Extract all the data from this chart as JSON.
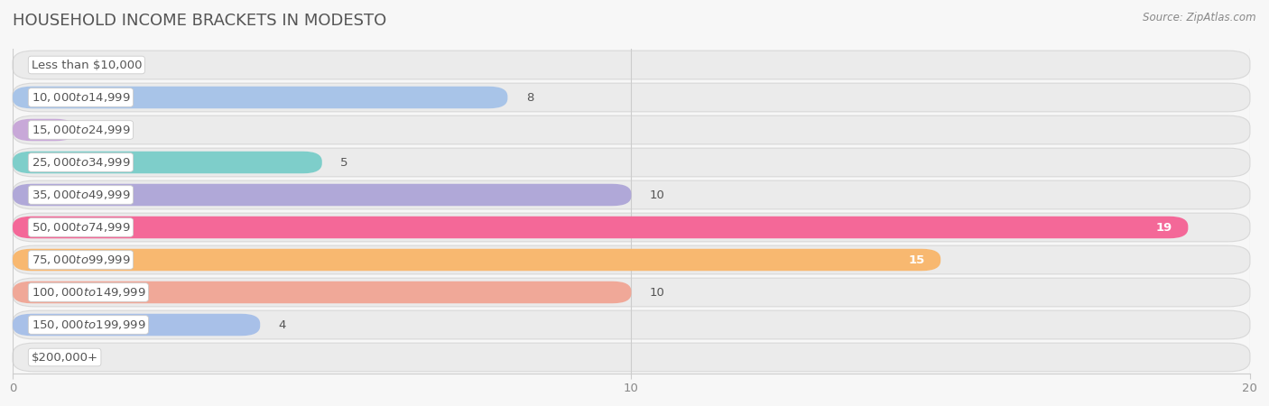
{
  "title": "HOUSEHOLD INCOME BRACKETS IN MODESTO",
  "source": "Source: ZipAtlas.com",
  "categories": [
    "Less than $10,000",
    "$10,000 to $14,999",
    "$15,000 to $24,999",
    "$25,000 to $34,999",
    "$35,000 to $49,999",
    "$50,000 to $74,999",
    "$75,000 to $99,999",
    "$100,000 to $149,999",
    "$150,000 to $199,999",
    "$200,000+"
  ],
  "values": [
    0,
    8,
    1,
    5,
    10,
    19,
    15,
    10,
    4,
    0
  ],
  "bar_colors": [
    "#F4A0A0",
    "#A8C4E8",
    "#C8A8D8",
    "#7ECECA",
    "#B0A8D8",
    "#F46898",
    "#F8B870",
    "#F0A898",
    "#A8C0E8",
    "#C8B8D8"
  ],
  "row_bg_color": "#ebebeb",
  "row_bg_border": "#d8d8d8",
  "background_color": "#f7f7f7",
  "xlim": [
    0,
    20
  ],
  "xticks": [
    0,
    10,
    20
  ],
  "title_fontsize": 13,
  "label_fontsize": 9.5,
  "value_fontsize": 9.5,
  "grid_color": "#cccccc"
}
